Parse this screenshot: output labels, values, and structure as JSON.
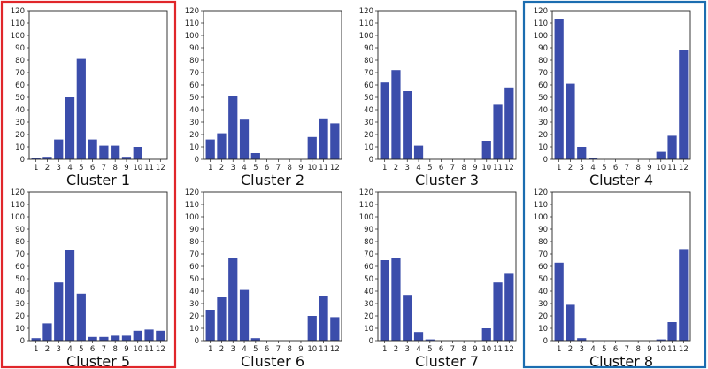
{
  "colors": {
    "bar": "#3b4dab",
    "highlight_red": "#e0262a",
    "highlight_blue": "#1b6db0"
  },
  "chart_data": [
    {
      "type": "bar",
      "title": "Cluster 1",
      "categories": [
        "1",
        "2",
        "3",
        "4",
        "5",
        "6",
        "7",
        "8",
        "9",
        "10",
        "11",
        "12"
      ],
      "values": [
        1,
        2,
        16,
        50,
        81,
        16,
        11,
        11,
        2,
        10,
        0,
        0
      ],
      "ylim": [
        0,
        120
      ],
      "yticks": [
        "0",
        "10",
        "20",
        "30",
        "40",
        "50",
        "60",
        "70",
        "80",
        "90",
        "100",
        "110",
        "120"
      ],
      "highlight": "red"
    },
    {
      "type": "bar",
      "title": "Cluster 2",
      "categories": [
        "1",
        "2",
        "3",
        "4",
        "5",
        "6",
        "7",
        "8",
        "9",
        "10",
        "11",
        "12"
      ],
      "values": [
        16,
        21,
        51,
        32,
        5,
        0,
        0,
        0,
        0,
        18,
        33,
        29
      ],
      "ylim": [
        0,
        120
      ],
      "yticks": [
        "0",
        "10",
        "20",
        "30",
        "40",
        "50",
        "60",
        "70",
        "80",
        "90",
        "100",
        "110",
        "120"
      ],
      "highlight": ""
    },
    {
      "type": "bar",
      "title": "Cluster 3",
      "categories": [
        "1",
        "2",
        "3",
        "4",
        "5",
        "6",
        "7",
        "8",
        "9",
        "10",
        "11",
        "12"
      ],
      "values": [
        62,
        72,
        55,
        11,
        0,
        0,
        0,
        0,
        0,
        15,
        44,
        58
      ],
      "ylim": [
        0,
        120
      ],
      "yticks": [
        "0",
        "10",
        "20",
        "30",
        "40",
        "50",
        "60",
        "70",
        "80",
        "90",
        "100",
        "110",
        "120"
      ],
      "highlight": ""
    },
    {
      "type": "bar",
      "title": "Cluster 4",
      "categories": [
        "1",
        "2",
        "3",
        "4",
        "5",
        "6",
        "7",
        "8",
        "9",
        "10",
        "11",
        "12"
      ],
      "values": [
        113,
        61,
        10,
        1,
        0,
        0,
        0,
        0,
        0,
        6,
        19,
        88
      ],
      "ylim": [
        0,
        120
      ],
      "yticks": [
        "0",
        "10",
        "20",
        "30",
        "40",
        "50",
        "60",
        "70",
        "80",
        "90",
        "100",
        "110",
        "120"
      ],
      "highlight": "blue"
    },
    {
      "type": "bar",
      "title": "Cluster 5",
      "categories": [
        "1",
        "2",
        "3",
        "4",
        "5",
        "6",
        "7",
        "8",
        "9",
        "10",
        "11",
        "12"
      ],
      "values": [
        2,
        14,
        47,
        73,
        38,
        3,
        3,
        4,
        4,
        8,
        9,
        8
      ],
      "ylim": [
        0,
        120
      ],
      "yticks": [
        "0",
        "10",
        "20",
        "30",
        "40",
        "50",
        "60",
        "70",
        "80",
        "90",
        "100",
        "110",
        "120"
      ],
      "highlight": "red"
    },
    {
      "type": "bar",
      "title": "Cluster 6",
      "categories": [
        "1",
        "2",
        "3",
        "4",
        "5",
        "6",
        "7",
        "8",
        "9",
        "10",
        "11",
        "12"
      ],
      "values": [
        25,
        35,
        67,
        41,
        2,
        0,
        0,
        0,
        0,
        20,
        36,
        19
      ],
      "ylim": [
        0,
        120
      ],
      "yticks": [
        "0",
        "10",
        "20",
        "30",
        "40",
        "50",
        "60",
        "70",
        "80",
        "90",
        "100",
        "110",
        "120"
      ],
      "highlight": ""
    },
    {
      "type": "bar",
      "title": "Cluster 7",
      "categories": [
        "1",
        "2",
        "3",
        "4",
        "5",
        "6",
        "7",
        "8",
        "9",
        "10",
        "11",
        "12"
      ],
      "values": [
        65,
        67,
        37,
        7,
        1,
        0,
        0,
        0,
        0,
        10,
        47,
        54
      ],
      "ylim": [
        0,
        120
      ],
      "yticks": [
        "0",
        "10",
        "20",
        "30",
        "40",
        "50",
        "60",
        "70",
        "80",
        "90",
        "100",
        "110",
        "120"
      ],
      "highlight": ""
    },
    {
      "type": "bar",
      "title": "Cluster 8",
      "categories": [
        "1",
        "2",
        "3",
        "4",
        "5",
        "6",
        "7",
        "8",
        "9",
        "10",
        "11",
        "12"
      ],
      "values": [
        63,
        29,
        2,
        0,
        0,
        0,
        0,
        0,
        0,
        1,
        15,
        74
      ],
      "ylim": [
        0,
        120
      ],
      "yticks": [
        "0",
        "10",
        "20",
        "30",
        "40",
        "50",
        "60",
        "70",
        "80",
        "90",
        "100",
        "110",
        "120"
      ],
      "highlight": "blue"
    }
  ]
}
